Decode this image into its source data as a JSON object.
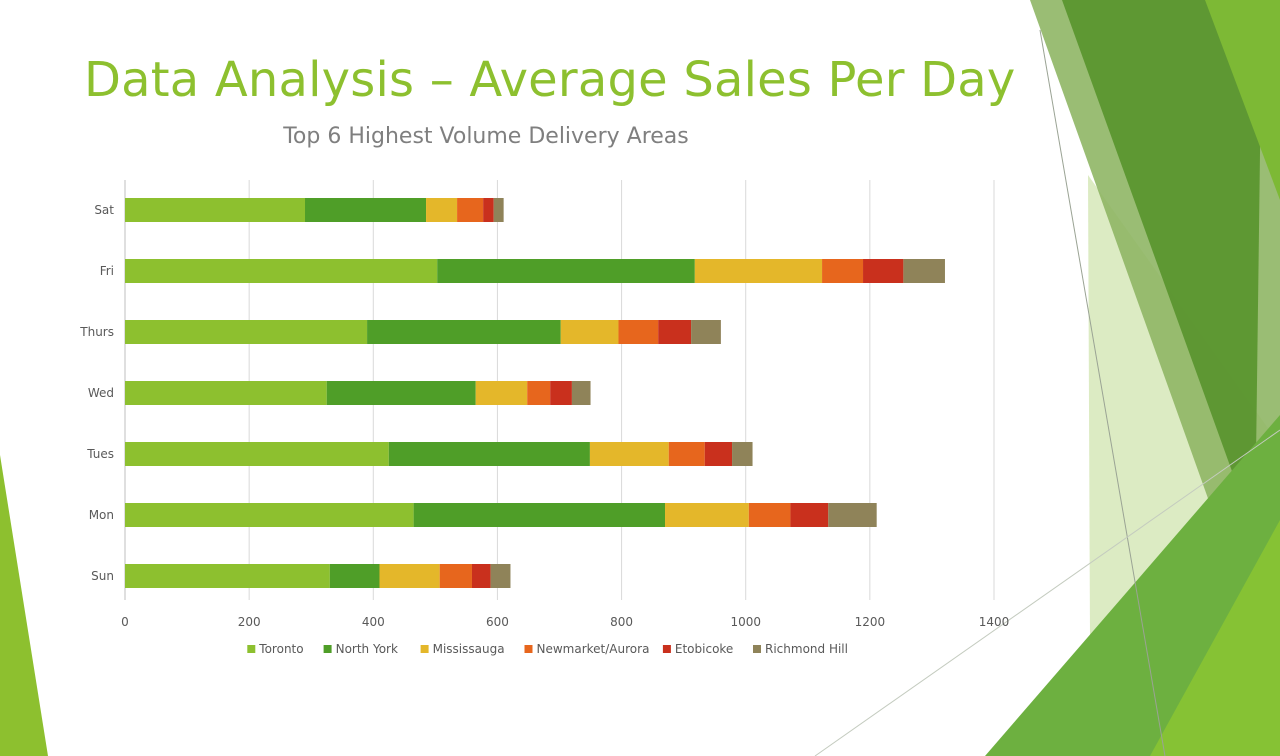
{
  "slide": {
    "title": "Data Analysis – Average Sales Per Day"
  },
  "colors": {
    "accent": "#8dc02f",
    "dark_green": "#4f9e28",
    "grid": "#d9d9d9",
    "text": "#404040"
  },
  "chart_data": {
    "type": "bar",
    "orientation": "horizontal",
    "stacked": true,
    "title": "Top 6 Highest Volume Delivery Areas",
    "xlabel": "",
    "ylabel": "",
    "xlim": [
      0,
      1400
    ],
    "xticks": [
      0,
      200,
      400,
      600,
      800,
      1000,
      1200,
      1400
    ],
    "grid": true,
    "legend_position": "bottom",
    "categories": [
      "Sat",
      "Fri",
      "Thurs",
      "Wed",
      "Tues",
      "Mon",
      "Sun"
    ],
    "series": [
      {
        "name": "Toronto",
        "color": "#8dc02f",
        "values": [
          290,
          503,
          390,
          325,
          425,
          465,
          330
        ]
      },
      {
        "name": "North York",
        "color": "#4f9e28",
        "values": [
          195,
          415,
          312,
          240,
          324,
          405,
          80
        ]
      },
      {
        "name": "Mississauga",
        "color": "#e4b72a",
        "values": [
          50,
          205,
          93,
          83,
          127,
          135,
          97
        ]
      },
      {
        "name": "Newmarket/Aurora",
        "color": "#e7661d",
        "values": [
          42,
          66,
          64,
          37,
          58,
          67,
          52
        ]
      },
      {
        "name": "Etobicoke",
        "color": "#c9301d",
        "values": [
          17,
          65,
          53,
          35,
          44,
          61,
          30
        ]
      },
      {
        "name": "Richmond Hill",
        "color": "#8f8359",
        "values": [
          16,
          67,
          48,
          30,
          33,
          78,
          32
        ]
      }
    ]
  }
}
